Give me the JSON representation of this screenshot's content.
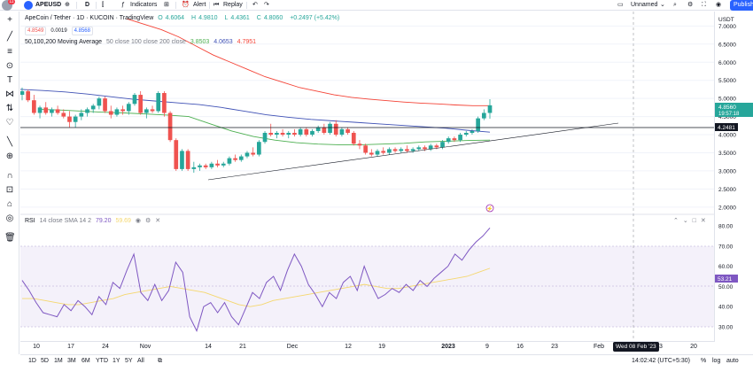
{
  "toolbar": {
    "avatar_badge": "11",
    "symbol": "APEUSD",
    "interval": "D",
    "indicators_label": "Indicators",
    "alert_label": "Alert",
    "replay_label": "Replay",
    "layout_name": "Unnamed",
    "publish_label": "Publish"
  },
  "legend": {
    "title": "ApeCoin / Tether · 1D · KUCOIN · TradingView",
    "open_label": "O",
    "open": "4.6064",
    "high_label": "H",
    "high": "4.9810",
    "low_label": "L",
    "low": "4.4361",
    "close_label": "C",
    "close": "4.8060",
    "change": "+0.2497 (+5.42%)",
    "bid": "4.8549",
    "spread": "0.0019",
    "ask": "4.8568",
    "ma_label": "50,100,200 Moving Average",
    "ma_params": "50 close 100 close 200 close",
    "ma50": "3.8503",
    "ma100": "4.0653",
    "ma200": "4.7951",
    "rsi_label": "RSI",
    "rsi_params": "14 close SMA 14 2",
    "rsi_value": "79.20",
    "rsi_ma_value": "59.69"
  },
  "price_axis": {
    "currency": "USDT",
    "ticks": [
      "7.0000",
      "6.5000",
      "6.0000",
      "5.5000",
      "5.0000",
      "4.5000",
      "4.0000",
      "3.5000",
      "3.0000",
      "2.5000",
      "2.0000"
    ],
    "last_price": "4.8560",
    "countdown": "19:57:18",
    "hline_price": "4.2481"
  },
  "rsi_axis": {
    "ticks": [
      "80.00",
      "70.00",
      "60.00",
      "50.00",
      "40.00",
      "30.00"
    ],
    "marker": "53.21"
  },
  "time_axis": {
    "labels": [
      "10",
      "17",
      "24",
      "Nov",
      "14",
      "21",
      "Dec",
      "12",
      "19",
      "2023",
      "9",
      "16",
      "23",
      "Feb",
      "13",
      "20"
    ],
    "crosshair_date": "Wed 08 Feb '23"
  },
  "bottombar": {
    "ranges": [
      "1D",
      "5D",
      "1M",
      "3M",
      "6M",
      "YTD",
      "1Y",
      "5Y",
      "All"
    ],
    "clock": "14:02:42 (UTC+5:30)",
    "percent": "%",
    "log": "log",
    "auto": "auto"
  },
  "colors": {
    "up": "#26a69a",
    "down": "#ef5350",
    "ma50": "#4caf50",
    "ma100": "#3f51b5",
    "ma200": "#f44336",
    "rsi": "#7e57c2",
    "rsi_ma": "#f5d76e",
    "accent": "#2962ff"
  },
  "chart_data": {
    "type": "candlestick",
    "candles": [
      {
        "o": 5.1,
        "h": 5.3,
        "l": 4.95,
        "c": 5.2
      },
      {
        "o": 5.2,
        "h": 5.25,
        "l": 4.9,
        "c": 4.95
      },
      {
        "o": 4.95,
        "h": 5.1,
        "l": 4.55,
        "c": 4.6
      },
      {
        "o": 4.6,
        "h": 4.8,
        "l": 4.45,
        "c": 4.75
      },
      {
        "o": 4.75,
        "h": 4.9,
        "l": 4.55,
        "c": 4.6
      },
      {
        "o": 4.6,
        "h": 4.75,
        "l": 4.5,
        "c": 4.7
      },
      {
        "o": 4.7,
        "h": 4.8,
        "l": 4.55,
        "c": 4.6
      },
      {
        "o": 4.6,
        "h": 4.7,
        "l": 4.45,
        "c": 4.5
      },
      {
        "o": 4.5,
        "h": 4.65,
        "l": 4.2,
        "c": 4.35
      },
      {
        "o": 4.35,
        "h": 4.55,
        "l": 4.2,
        "c": 4.5
      },
      {
        "o": 4.5,
        "h": 4.7,
        "l": 4.4,
        "c": 4.6
      },
      {
        "o": 4.6,
        "h": 4.75,
        "l": 4.5,
        "c": 4.7
      },
      {
        "o": 4.7,
        "h": 4.85,
        "l": 4.6,
        "c": 4.8
      },
      {
        "o": 4.8,
        "h": 5.05,
        "l": 4.7,
        "c": 5.0
      },
      {
        "o": 5.0,
        "h": 5.05,
        "l": 4.6,
        "c": 4.65
      },
      {
        "o": 4.65,
        "h": 4.8,
        "l": 4.45,
        "c": 4.55
      },
      {
        "o": 4.55,
        "h": 4.75,
        "l": 4.5,
        "c": 4.7
      },
      {
        "o": 4.7,
        "h": 4.8,
        "l": 4.55,
        "c": 4.65
      },
      {
        "o": 4.65,
        "h": 4.9,
        "l": 4.55,
        "c": 4.85
      },
      {
        "o": 4.85,
        "h": 5.15,
        "l": 4.8,
        "c": 5.1
      },
      {
        "o": 5.1,
        "h": 5.2,
        "l": 4.55,
        "c": 4.6
      },
      {
        "o": 4.6,
        "h": 4.75,
        "l": 4.45,
        "c": 4.7
      },
      {
        "o": 4.7,
        "h": 4.8,
        "l": 4.6,
        "c": 4.65
      },
      {
        "o": 4.65,
        "h": 5.2,
        "l": 4.6,
        "c": 5.15
      },
      {
        "o": 5.15,
        "h": 5.2,
        "l": 4.5,
        "c": 4.6
      },
      {
        "o": 4.6,
        "h": 4.65,
        "l": 3.8,
        "c": 3.85
      },
      {
        "o": 3.85,
        "h": 3.9,
        "l": 3.0,
        "c": 3.05
      },
      {
        "o": 3.05,
        "h": 3.6,
        "l": 3.0,
        "c": 3.55
      },
      {
        "o": 3.55,
        "h": 3.6,
        "l": 3.0,
        "c": 3.05
      },
      {
        "o": 3.05,
        "h": 3.25,
        "l": 2.95,
        "c": 3.1
      },
      {
        "o": 3.1,
        "h": 3.2,
        "l": 3.0,
        "c": 3.15
      },
      {
        "o": 3.15,
        "h": 3.2,
        "l": 3.05,
        "c": 3.1
      },
      {
        "o": 3.1,
        "h": 3.25,
        "l": 3.05,
        "c": 3.2
      },
      {
        "o": 3.2,
        "h": 3.3,
        "l": 3.1,
        "c": 3.15
      },
      {
        "o": 3.15,
        "h": 3.25,
        "l": 3.1,
        "c": 3.2
      },
      {
        "o": 3.2,
        "h": 3.4,
        "l": 3.15,
        "c": 3.35
      },
      {
        "o": 3.35,
        "h": 3.45,
        "l": 3.25,
        "c": 3.3
      },
      {
        "o": 3.3,
        "h": 3.45,
        "l": 3.25,
        "c": 3.4
      },
      {
        "o": 3.4,
        "h": 3.55,
        "l": 3.35,
        "c": 3.5
      },
      {
        "o": 3.5,
        "h": 3.65,
        "l": 3.4,
        "c": 3.45
      },
      {
        "o": 3.45,
        "h": 3.85,
        "l": 3.4,
        "c": 3.8
      },
      {
        "o": 3.8,
        "h": 4.1,
        "l": 3.75,
        "c": 4.05
      },
      {
        "o": 4.05,
        "h": 4.3,
        "l": 3.95,
        "c": 4.0
      },
      {
        "o": 4.0,
        "h": 4.1,
        "l": 3.9,
        "c": 4.05
      },
      {
        "o": 4.05,
        "h": 4.15,
        "l": 3.95,
        "c": 4.0
      },
      {
        "o": 4.0,
        "h": 4.1,
        "l": 3.9,
        "c": 4.05
      },
      {
        "o": 4.05,
        "h": 4.15,
        "l": 3.95,
        "c": 4.0
      },
      {
        "o": 4.0,
        "h": 4.2,
        "l": 3.95,
        "c": 4.15
      },
      {
        "o": 4.15,
        "h": 4.2,
        "l": 3.95,
        "c": 4.0
      },
      {
        "o": 4.0,
        "h": 4.15,
        "l": 3.95,
        "c": 4.1
      },
      {
        "o": 4.1,
        "h": 4.25,
        "l": 4.05,
        "c": 4.2
      },
      {
        "o": 4.2,
        "h": 4.3,
        "l": 4.0,
        "c": 4.05
      },
      {
        "o": 4.05,
        "h": 4.35,
        "l": 4.0,
        "c": 4.3
      },
      {
        "o": 4.3,
        "h": 4.4,
        "l": 3.95,
        "c": 4.0
      },
      {
        "o": 4.0,
        "h": 4.2,
        "l": 3.95,
        "c": 4.15
      },
      {
        "o": 4.15,
        "h": 4.2,
        "l": 4.0,
        "c": 4.05
      },
      {
        "o": 4.05,
        "h": 4.1,
        "l": 3.7,
        "c": 3.75
      },
      {
        "o": 3.75,
        "h": 3.85,
        "l": 3.6,
        "c": 3.7
      },
      {
        "o": 3.7,
        "h": 3.75,
        "l": 3.45,
        "c": 3.5
      },
      {
        "o": 3.5,
        "h": 3.6,
        "l": 3.4,
        "c": 3.45
      },
      {
        "o": 3.45,
        "h": 3.6,
        "l": 3.4,
        "c": 3.55
      },
      {
        "o": 3.55,
        "h": 3.65,
        "l": 3.45,
        "c": 3.5
      },
      {
        "o": 3.5,
        "h": 3.65,
        "l": 3.45,
        "c": 3.6
      },
      {
        "o": 3.6,
        "h": 3.65,
        "l": 3.5,
        "c": 3.55
      },
      {
        "o": 3.55,
        "h": 3.65,
        "l": 3.5,
        "c": 3.6
      },
      {
        "o": 3.6,
        "h": 3.7,
        "l": 3.5,
        "c": 3.55
      },
      {
        "o": 3.55,
        "h": 3.65,
        "l": 3.5,
        "c": 3.6
      },
      {
        "o": 3.6,
        "h": 3.7,
        "l": 3.55,
        "c": 3.65
      },
      {
        "o": 3.65,
        "h": 3.7,
        "l": 3.55,
        "c": 3.6
      },
      {
        "o": 3.6,
        "h": 3.75,
        "l": 3.55,
        "c": 3.7
      },
      {
        "o": 3.7,
        "h": 3.75,
        "l": 3.6,
        "c": 3.65
      },
      {
        "o": 3.65,
        "h": 3.85,
        "l": 3.6,
        "c": 3.8
      },
      {
        "o": 3.8,
        "h": 3.95,
        "l": 3.75,
        "c": 3.9
      },
      {
        "o": 3.9,
        "h": 3.95,
        "l": 3.8,
        "c": 3.85
      },
      {
        "o": 3.85,
        "h": 4.05,
        "l": 3.8,
        "c": 4.0
      },
      {
        "o": 4.0,
        "h": 4.1,
        "l": 3.95,
        "c": 4.05
      },
      {
        "o": 4.05,
        "h": 4.15,
        "l": 4.0,
        "c": 4.1
      },
      {
        "o": 4.1,
        "h": 4.5,
        "l": 4.05,
        "c": 4.45
      },
      {
        "o": 4.45,
        "h": 4.7,
        "l": 4.4,
        "c": 4.6
      },
      {
        "o": 4.6,
        "h": 4.98,
        "l": 4.44,
        "c": 4.81
      }
    ],
    "ylim": [
      1.8,
      7.4
    ],
    "ma50": [
      4.7,
      4.68,
      4.65,
      4.62,
      4.6,
      4.57,
      4.54,
      4.5,
      4.3,
      4.1,
      3.95,
      3.85,
      3.78,
      3.74,
      3.72,
      3.72,
      3.74,
      3.76,
      3.8,
      3.82,
      3.84,
      3.85
    ],
    "ma100": [
      5.25,
      5.22,
      5.18,
      5.12,
      5.05,
      4.98,
      4.93,
      4.88,
      4.83,
      4.75,
      4.65,
      4.55,
      4.48,
      4.42,
      4.38,
      4.34,
      4.3,
      4.26,
      4.22,
      4.18,
      4.12,
      4.07
    ],
    "ma200": [
      7.2,
      7.05,
      6.9,
      6.7,
      6.45,
      6.2,
      6.0,
      5.8,
      5.6,
      5.45,
      5.3,
      5.2,
      5.1,
      5.03,
      4.98,
      4.94,
      4.9,
      4.87,
      4.85,
      4.82,
      4.8,
      4.8
    ],
    "rsi": [
      53,
      48,
      42,
      37,
      36,
      35,
      41,
      38,
      43,
      40,
      36,
      45,
      41,
      52,
      49,
      58,
      66,
      47,
      43,
      51,
      43,
      48,
      62,
      57,
      35,
      28,
      40,
      42,
      37,
      42,
      35,
      31,
      39,
      47,
      44,
      52,
      55,
      48,
      58,
      66,
      60,
      51,
      46,
      40,
      47,
      44,
      52,
      55,
      48,
      60,
      51,
      44,
      46,
      49,
      47,
      51,
      48,
      53,
      50,
      54,
      57,
      60,
      66,
      63,
      68,
      72,
      75,
      79
    ],
    "rsi_ma": [
      44,
      44,
      43,
      42,
      41,
      41,
      42,
      43,
      44,
      46,
      47,
      48,
      49,
      50,
      49,
      48,
      47,
      45,
      43,
      41,
      40,
      41,
      43,
      44,
      45,
      46,
      47,
      48,
      49,
      50,
      51,
      50,
      49,
      49,
      50,
      51,
      52,
      53,
      54,
      55,
      57,
      59
    ]
  }
}
